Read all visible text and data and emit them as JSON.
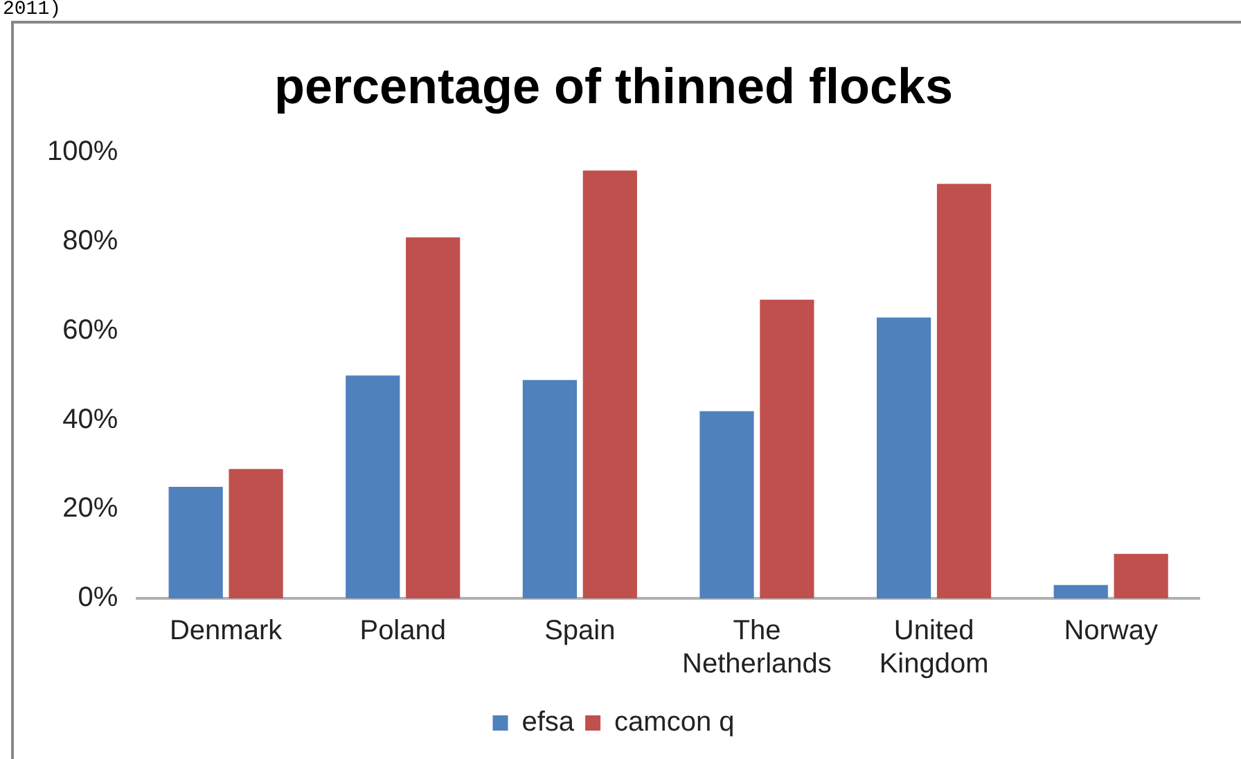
{
  "chart_data": {
    "type": "bar",
    "title": "percentage of thinned flocks",
    "annotations": [
      "2011)"
    ],
    "categories": [
      "Denmark",
      "Poland",
      "Spain",
      "The Netherlands",
      "United Kingdom",
      "Norway"
    ],
    "series": [
      {
        "name": "efsa",
        "color": "#4f81bd",
        "values": [
          25,
          50,
          49,
          42,
          63,
          3
        ]
      },
      {
        "name": "camcon q",
        "color": "#c0504d",
        "values": [
          29,
          81,
          96,
          67,
          93,
          10
        ]
      }
    ],
    "ylim": [
      0,
      100
    ],
    "yticks": [
      {
        "value": 0,
        "label": "0%"
      },
      {
        "value": 20,
        "label": "20%"
      },
      {
        "value": 40,
        "label": "40%"
      },
      {
        "value": 60,
        "label": "60%"
      },
      {
        "value": 80,
        "label": "80%"
      },
      {
        "value": 100,
        "label": "100%"
      }
    ],
    "grid": false,
    "legend": "bottom"
  }
}
